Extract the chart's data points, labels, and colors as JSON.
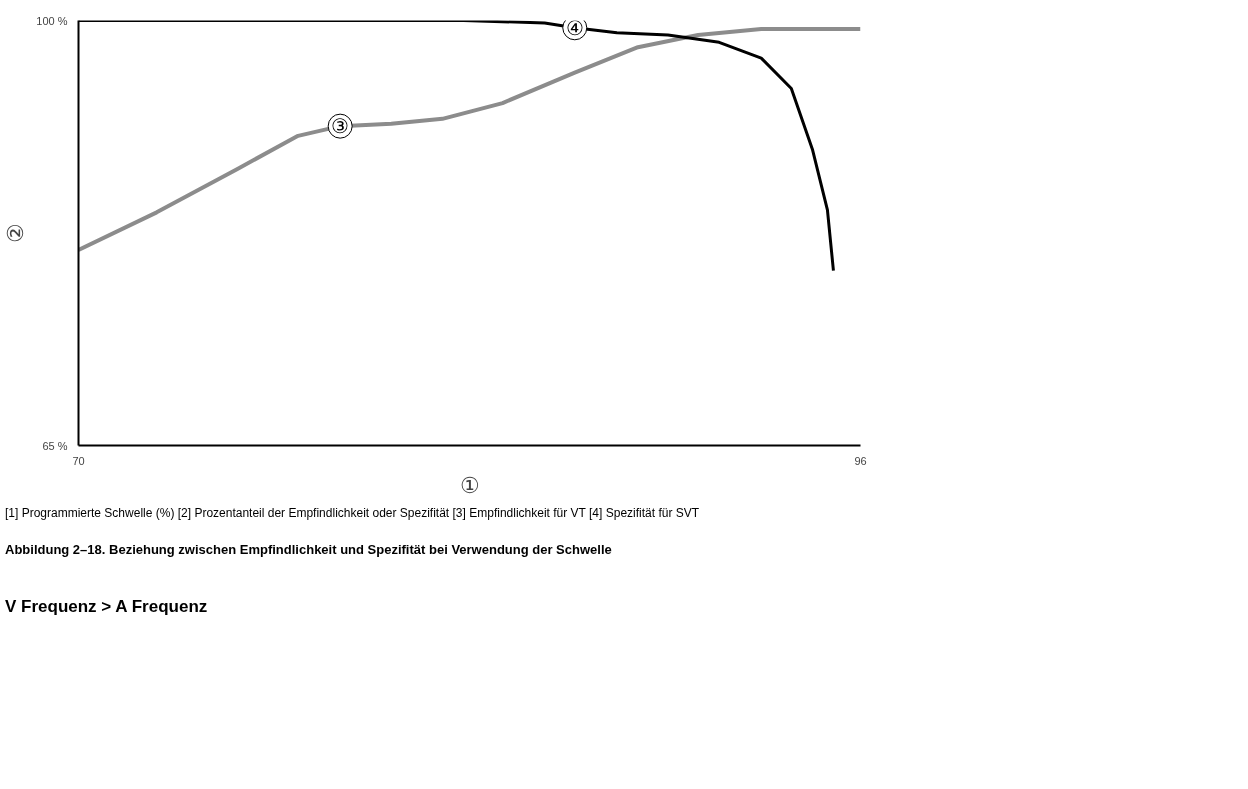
{
  "chart_data": {
    "type": "line",
    "title": "Abbildung 2–18. Beziehung zwischen Empfindlichkeit und Spezifität bei Verwendung der Schwelle",
    "xlabel": "①",
    "ylabel": "②",
    "xlim": [
      70,
      96
    ],
    "ylim": [
      65,
      100
    ],
    "xticks": [
      70,
      96
    ],
    "yticks": [
      {
        "value": 65,
        "label": "65 %"
      },
      {
        "value": 100,
        "label": "100 %"
      }
    ],
    "marker": "none",
    "line_style": "solid",
    "series": [
      {
        "name": "③",
        "color": "#8c8c8c",
        "x": [
          70,
          72.6,
          75.3,
          77.3,
          78.7,
          80.4,
          82.1,
          84.1,
          86.5,
          88.6,
          90.6,
          92.7,
          96
        ],
        "values": [
          81.1,
          84.2,
          87.8,
          90.5,
          91.3,
          91.5,
          91.9,
          93.2,
          95.7,
          97.8,
          98.8,
          99.3,
          99.3
        ]
      },
      {
        "name": "④",
        "color": "#000000",
        "x": [
          70,
          76,
          82.8,
          85.5,
          86.5,
          87.9,
          89.6,
          91.3,
          92.7,
          93.7,
          94.4,
          94.9,
          95.1
        ],
        "values": [
          100,
          100,
          100,
          99.8,
          99.4,
          99.0,
          98.8,
          98.2,
          96.9,
          94.4,
          89.4,
          84.4,
          79.4
        ]
      }
    ],
    "annotations": [
      "[1] Programmierte Schwelle (%) [2] Prozentanteil der Empfindlichkeit oder Spezifität [3] Empfindlichkeit für VT [4] Spezifität für SVT",
      "V Frequenz > A Frequenz"
    ]
  }
}
